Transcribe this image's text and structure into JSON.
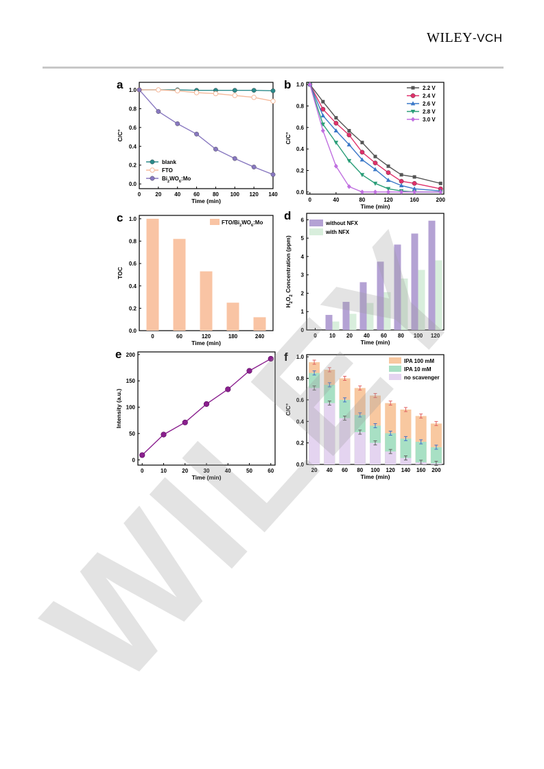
{
  "header": {
    "logo_main": "WILEY",
    "logo_suffix": "-VCH"
  },
  "watermark": {
    "text": "WILEY"
  },
  "chart_data": [
    {
      "panel": "a",
      "type": "line",
      "xlabel": "Time (min)",
      "ylabel": "C/C°",
      "xlim": [
        0,
        140
      ],
      "ylim": [
        -0.05,
        1.08
      ],
      "xticks": [
        0,
        20,
        40,
        60,
        80,
        100,
        120,
        140
      ],
      "yticks": [
        0.0,
        0.2,
        0.4,
        0.6,
        0.8,
        1.0
      ],
      "legend": "bottom-left",
      "series": [
        {
          "name": "blank",
          "color": "#2a8a8a",
          "marker": "circle",
          "x": [
            0,
            20,
            40,
            60,
            80,
            100,
            120,
            140
          ],
          "y": [
            1.0,
            1.0,
            1.0,
            0.995,
            0.995,
            0.995,
            0.995,
            0.99
          ],
          "smooth": []
        },
        {
          "name": "FTO",
          "color": "#f5b89a",
          "marker": "circle-open",
          "x": [
            0,
            20,
            40,
            60,
            80,
            100,
            120,
            140
          ],
          "y": [
            1.0,
            1.0,
            0.99,
            0.97,
            0.96,
            0.94,
            0.92,
            0.88
          ],
          "smooth": []
        },
        {
          "name": "Bi2WO6:Mo",
          "color": "#8878c0",
          "marker": "circle",
          "x": [
            0,
            20,
            40,
            60,
            80,
            100,
            120,
            140
          ],
          "y": [
            1.0,
            0.77,
            0.64,
            0.53,
            0.37,
            0.27,
            0.18,
            0.1
          ],
          "smooth": []
        }
      ]
    },
    {
      "panel": "b",
      "type": "line",
      "xlabel": "Time (min)",
      "ylabel": "C/C°",
      "xlim": [
        -5,
        205
      ],
      "ylim": [
        -0.02,
        1.02
      ],
      "xticks": [
        0,
        40,
        80,
        120,
        160,
        200
      ],
      "yticks": [
        0.0,
        0.2,
        0.4,
        0.6,
        0.8,
        1.0
      ],
      "legend": "top-right",
      "series": [
        {
          "name": "2.2 V",
          "color": "#555555",
          "marker": "square",
          "x": [
            0,
            20,
            40,
            60,
            80,
            100,
            120,
            140,
            160,
            200
          ],
          "y": [
            1.0,
            0.84,
            0.69,
            0.57,
            0.46,
            0.33,
            0.24,
            0.16,
            0.14,
            0.08
          ]
        },
        {
          "name": "2.4 V",
          "color": "#e0306a",
          "marker": "circle",
          "x": [
            0,
            20,
            40,
            60,
            80,
            100,
            120,
            140,
            160,
            200
          ],
          "y": [
            1.0,
            0.77,
            0.64,
            0.53,
            0.37,
            0.27,
            0.18,
            0.1,
            0.08,
            0.03
          ]
        },
        {
          "name": "2.6 V",
          "color": "#3a78c8",
          "marker": "triangle",
          "x": [
            0,
            20,
            40,
            60,
            80,
            100,
            120,
            140,
            160,
            200
          ],
          "y": [
            1.0,
            0.71,
            0.57,
            0.44,
            0.3,
            0.21,
            0.11,
            0.06,
            0.03,
            0.01
          ]
        },
        {
          "name": "2.8 V",
          "color": "#2a9e78",
          "marker": "triangle-down",
          "x": [
            0,
            20,
            40,
            60,
            80,
            100,
            120,
            140,
            160,
            200
          ],
          "y": [
            1.0,
            0.63,
            0.46,
            0.29,
            0.16,
            0.08,
            0.03,
            0.01,
            0.0,
            0.0
          ]
        },
        {
          "name": "3.0 V",
          "color": "#c070e0",
          "marker": "diamond",
          "x": [
            0,
            20,
            40,
            60,
            80,
            100,
            120,
            140,
            160,
            200
          ],
          "y": [
            1.0,
            0.57,
            0.24,
            0.05,
            0.0,
            0.0,
            0.0,
            0.0,
            0.0,
            0.0
          ]
        }
      ]
    },
    {
      "panel": "c",
      "type": "bar",
      "xlabel": "Time (min)",
      "ylabel": "TOC",
      "categories": [
        "0",
        "60",
        "120",
        "180",
        "240"
      ],
      "values": [
        1.0,
        0.82,
        0.53,
        0.25,
        0.12
      ],
      "ylim": [
        0,
        1.03
      ],
      "yticks": [
        0.0,
        0.2,
        0.4,
        0.6,
        0.8,
        1.0
      ],
      "color": "#f9c4a4",
      "legend_label": "FTO/Bi2WO6:Mo",
      "legend": "top-right"
    },
    {
      "panel": "d",
      "type": "bar",
      "xlabel": "Time (min)",
      "ylabel": "H2O2 Concentration (ppm)",
      "categories": [
        "0",
        "10",
        "20",
        "40",
        "60",
        "80",
        "100",
        "120"
      ],
      "ylim": [
        0,
        6.35
      ],
      "yticks": [
        0,
        1,
        2,
        3,
        4,
        5,
        6
      ],
      "legend": "top-left",
      "series": [
        {
          "name": "without NFX",
          "color": "#b4a2d4",
          "values": [
            0,
            0.82,
            1.53,
            2.6,
            3.72,
            4.65,
            5.25,
            5.95
          ]
        },
        {
          "name": "with NFX",
          "color": "#d8eedc",
          "values": [
            0,
            0.46,
            0.88,
            1.47,
            2.06,
            2.8,
            3.27,
            3.79
          ]
        }
      ]
    },
    {
      "panel": "e",
      "type": "line",
      "xlabel": "Time (min)",
      "ylabel": "Intensity (a.u.)",
      "xlim": [
        -2,
        62
      ],
      "ylim": [
        -10,
        205
      ],
      "xticks": [
        0,
        10,
        20,
        30,
        40,
        50,
        60
      ],
      "yticks": [
        0,
        50,
        100,
        150,
        200
      ],
      "series": [
        {
          "name": "",
          "color": "#8a1f8e",
          "marker": "sphere",
          "x": [
            0,
            10,
            20,
            30,
            40,
            50,
            60
          ],
          "y": [
            9,
            48,
            71,
            106,
            134,
            169,
            192
          ]
        }
      ]
    },
    {
      "panel": "f",
      "type": "bar",
      "xlabel": "Time (min)",
      "ylabel": "C/C°",
      "categories": [
        "20",
        "40",
        "60",
        "80",
        "100",
        "120",
        "140",
        "160",
        "200"
      ],
      "ylim": [
        0,
        1.02
      ],
      "yticks": [
        0.0,
        0.2,
        0.4,
        0.6,
        0.8,
        1.0
      ],
      "legend": "top-right",
      "series": [
        {
          "name": "IPA 100 mM",
          "color": "#f8c8a0",
          "err_color": "#e06060",
          "values": [
            0.95,
            0.88,
            0.8,
            0.71,
            0.64,
            0.57,
            0.51,
            0.45,
            0.38
          ]
        },
        {
          "name": "IPA 10 mM",
          "color": "#a8e0c4",
          "err_color": "#4070c8",
          "values": [
            0.85,
            0.74,
            0.6,
            0.46,
            0.36,
            0.29,
            0.24,
            0.21,
            0.16
          ]
        },
        {
          "name": "no scavenger",
          "color": "#e4d4f0",
          "err_color": "#606060",
          "values": [
            0.71,
            0.57,
            0.43,
            0.3,
            0.2,
            0.12,
            0.06,
            0.02,
            0.01
          ]
        }
      ]
    }
  ]
}
